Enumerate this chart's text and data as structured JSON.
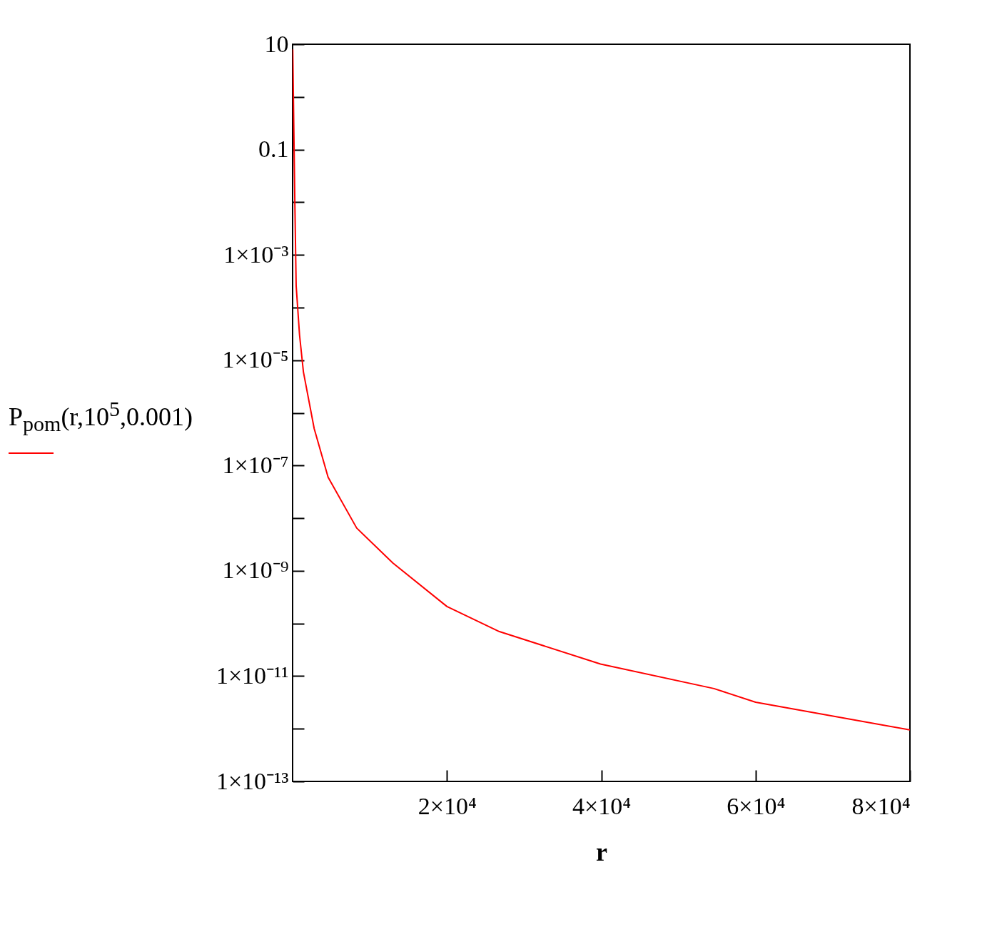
{
  "chart_data": {
    "type": "line",
    "ylabel": "P$_{pom}$(r,10$^{5}$,0.001)",
    "xlabel": "r",
    "x": [
      20,
      150,
      300,
      460,
      900,
      1400,
      2800,
      4600,
      8300,
      13000,
      20000,
      26800,
      39900,
      54600,
      60000,
      80000
    ],
    "series": [
      {
        "color": "#ff0000",
        "values": [
          8,
          0.3,
          0.008,
          0.00026,
          3e-05,
          6e-06,
          5e-07,
          6e-08,
          6.5e-09,
          1.4e-09,
          2.1e-10,
          7e-11,
          1.7e-11,
          5.8e-12,
          3.2e-12,
          9.5e-13
        ]
      }
    ],
    "log": "y",
    "grid": false,
    "line_style": "solid",
    "marker": "none",
    "xlim": [
      0,
      80000
    ],
    "xticks": [
      {
        "value": 20000,
        "label": "2×10⁴"
      },
      {
        "value": 40000,
        "label": "4×10⁴"
      },
      {
        "value": 60000,
        "label": "6×10⁴"
      },
      {
        "value": 80000,
        "label": "8×10⁴"
      }
    ],
    "ylim": [
      1e-13,
      10
    ],
    "yticks": [
      10,
      {
        "value": 1,
        "label": null
      },
      0.1,
      {
        "value": 0.01,
        "label": null
      },
      {
        "value": 0.001,
        "label": "1×10⁻³"
      },
      {
        "value": 0.0001,
        "label": null
      },
      {
        "value": 1e-05,
        "label": "1×10⁻⁵"
      },
      {
        "value": 1e-06,
        "label": null
      },
      {
        "value": 1e-07,
        "label": "1×10⁻⁷"
      },
      {
        "value": 1e-08,
        "label": null
      },
      {
        "value": 1e-09,
        "label": "1×10⁻⁹"
      },
      {
        "value": 1e-10,
        "label": null
      },
      {
        "value": 1e-11,
        "label": "1×10⁻¹¹"
      },
      {
        "value": 1e-12,
        "label": null
      },
      {
        "value": 1e-13,
        "label": "1×10⁻¹³"
      }
    ]
  }
}
